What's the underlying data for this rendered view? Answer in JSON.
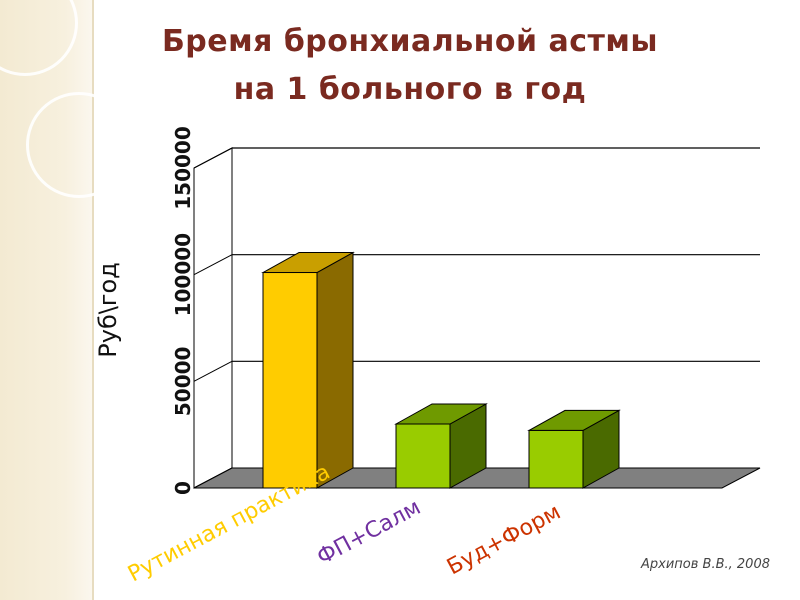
{
  "title_line1": "Бремя бронхиальной астмы",
  "title_line2": "на 1 больного в год",
  "credit": "Архипов В.В., 2008",
  "chart_data": {
    "type": "bar",
    "title": "Бремя бронхиальной астмы на 1 больного в год",
    "ylabel": "Руб\\год",
    "xlabel": "",
    "categories": [
      "Рутинная практика",
      "ФП+Салм",
      "Буд+Форм"
    ],
    "values": [
      101000,
      30000,
      27000
    ],
    "ylim": [
      0,
      150000
    ],
    "yticks": [
      0,
      50000,
      100000,
      150000
    ],
    "ytick_labels": [
      "0",
      "50000",
      "100000",
      "150000"
    ],
    "grid": true,
    "legend": "none",
    "colors": {
      "bars": [
        "#FFCC00",
        "#99CC00",
        "#99CC00"
      ],
      "bar_sides": [
        "#8a6a00",
        "#4a6a00",
        "#4a6a00"
      ],
      "bar_tops": [
        "#c99f00",
        "#6f9a00",
        "#6f9a00"
      ],
      "category_labels": [
        "#FFCC00",
        "#7030A0",
        "#CC3300"
      ],
      "floor": "#808080",
      "gridlines": "#000000"
    }
  }
}
